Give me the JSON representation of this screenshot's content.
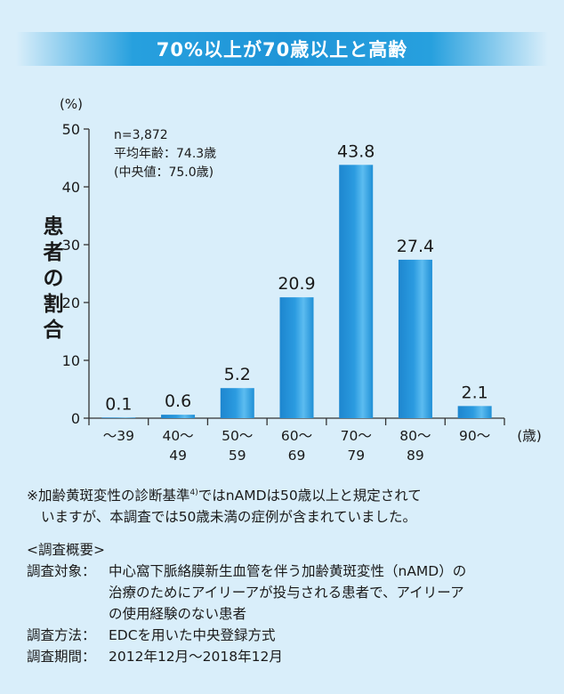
{
  "banner": {
    "text": "70%以上が70歳以上と高齢"
  },
  "chart_data": {
    "type": "bar",
    "categories": [
      "～39",
      "40～\n49",
      "50～\n59",
      "60～\n69",
      "70～\n79",
      "80～\n89",
      "90～"
    ],
    "values": [
      0.1,
      0.6,
      5.2,
      20.9,
      43.8,
      27.4,
      2.1
    ],
    "value_labels": [
      "0.1",
      "0.6",
      "5.2",
      "20.9",
      "43.8",
      "27.4",
      "2.1"
    ],
    "yticks": [
      0,
      10,
      20,
      30,
      40,
      50
    ],
    "ylim": [
      0,
      50
    ],
    "ylabel": "患者の割合",
    "yunit": "(%)",
    "xunit": "(歳)",
    "bar_color": "#2b9be0",
    "stats": [
      "n=3,872",
      "平均年齢：74.3歳",
      "(中央値：75.0歳)"
    ]
  },
  "footnote": {
    "mark": "※",
    "line1_a": "加齢黄斑変性の診断基準",
    "ref": "4)",
    "line1_b": "ではnAMDは50歳以上と規定されて",
    "line2": "いますが、本調査では50歳未満の症例が含まれていました。"
  },
  "survey": {
    "heading": "<調査概要>",
    "target_label": "調査対象：",
    "target_lines": [
      "中心窩下脈絡膜新生血管を伴う加齢黄斑変性（nAMD）の",
      "治療のためにアイリーアが投与される患者で、アイリーア",
      "の使用経験のない患者"
    ],
    "method_label": "調査方法：",
    "method_value": "EDCを用いた中央登録方式",
    "period_label": "調査期間：",
    "period_value": "2012年12月～2018年12月"
  }
}
